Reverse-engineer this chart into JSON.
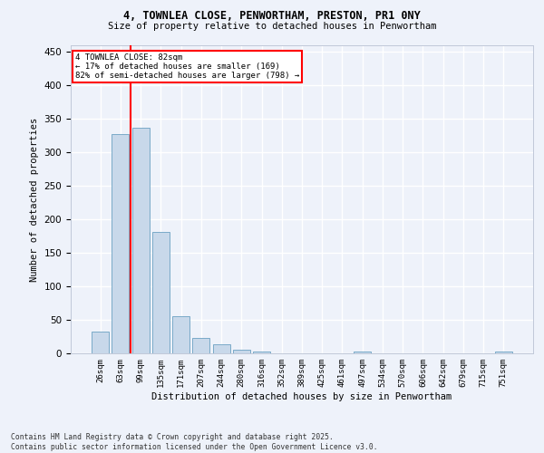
{
  "title_line1": "4, TOWNLEA CLOSE, PENWORTHAM, PRESTON, PR1 0NY",
  "title_line2": "Size of property relative to detached houses in Penwortham",
  "xlabel": "Distribution of detached houses by size in Penwortham",
  "ylabel": "Number of detached properties",
  "categories": [
    "26sqm",
    "63sqm",
    "99sqm",
    "135sqm",
    "171sqm",
    "207sqm",
    "244sqm",
    "280sqm",
    "316sqm",
    "352sqm",
    "389sqm",
    "425sqm",
    "461sqm",
    "497sqm",
    "534sqm",
    "570sqm",
    "606sqm",
    "642sqm",
    "679sqm",
    "715sqm",
    "751sqm"
  ],
  "values": [
    33,
    328,
    337,
    181,
    56,
    23,
    13,
    6,
    3,
    0,
    0,
    0,
    0,
    3,
    0,
    0,
    0,
    0,
    0,
    0,
    3
  ],
  "bar_color": "#c8d8ea",
  "bar_edge_color": "#7aaac8",
  "vline_x": 1.5,
  "vline_color": "red",
  "ylim": [
    0,
    460
  ],
  "yticks": [
    0,
    50,
    100,
    150,
    200,
    250,
    300,
    350,
    400,
    450
  ],
  "annotation_text": "4 TOWNLEA CLOSE: 82sqm\n← 17% of detached houses are smaller (169)\n82% of semi-detached houses are larger (798) →",
  "annotation_box_color": "white",
  "annotation_box_edge": "red",
  "footer_line1": "Contains HM Land Registry data © Crown copyright and database right 2025.",
  "footer_line2": "Contains public sector information licensed under the Open Government Licence v3.0.",
  "background_color": "#eef2fa",
  "grid_color": "#ffffff",
  "fig_width": 6.0,
  "fig_height": 5.0
}
